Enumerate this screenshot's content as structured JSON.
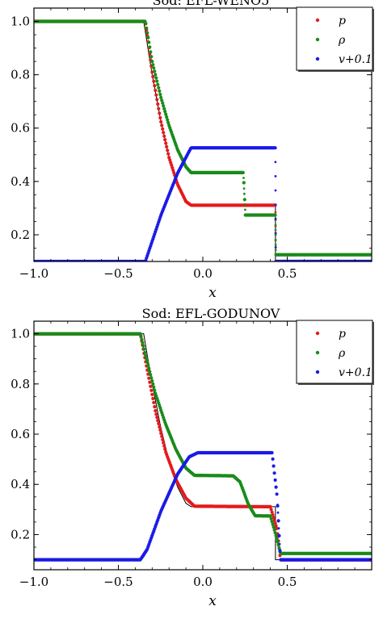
{
  "chart_data": [
    {
      "type": "line",
      "title": "Sod: EFL-WENO5",
      "xlabel": "x",
      "ylabel": "",
      "xlim": [
        -1.0,
        1.0
      ],
      "ylim": [
        0.1,
        1.05
      ],
      "xticks": [
        -1.0,
        -0.5,
        0.0,
        0.5
      ],
      "xtick_labels": [
        "−1.0",
        "−0.5",
        "0.0",
        "0.5"
      ],
      "yticks": [
        0.2,
        0.4,
        0.6,
        0.8,
        1.0
      ],
      "ytick_labels": [
        "0.2",
        "0.4",
        "0.6",
        "0.8",
        "1.0"
      ],
      "grid": false,
      "legend_position": "top-right",
      "series": [
        {
          "name": "p",
          "color": "#e41a1c",
          "marker": "dots",
          "x": [
            -1.0,
            -0.34,
            -0.3,
            -0.25,
            -0.2,
            -0.15,
            -0.1,
            -0.07,
            0.43,
            0.432,
            1.0
          ],
          "y": [
            1.0,
            1.0,
            0.81,
            0.63,
            0.49,
            0.39,
            0.325,
            0.311,
            0.311,
            0.1,
            0.1
          ]
        },
        {
          "name": "ρ",
          "color": "#1a8a1a",
          "marker": "dots",
          "x": [
            -1.0,
            -0.34,
            -0.3,
            -0.25,
            -0.2,
            -0.15,
            -0.1,
            -0.07,
            0.24,
            0.252,
            0.43,
            0.432,
            1.0
          ],
          "y": [
            1.0,
            1.0,
            0.85,
            0.72,
            0.61,
            0.52,
            0.455,
            0.433,
            0.433,
            0.274,
            0.274,
            0.125,
            0.125
          ]
        },
        {
          "name": "v+0.1",
          "color": "#1a1ae6",
          "marker": "dots",
          "x": [
            -1.0,
            -0.34,
            -0.25,
            -0.15,
            -0.07,
            0.43,
            0.432,
            1.0
          ],
          "y": [
            0.1,
            0.1,
            0.27,
            0.43,
            0.526,
            0.526,
            0.1,
            0.1
          ]
        }
      ],
      "exact_solution": {
        "name": "",
        "color": "#000000",
        "x": [
          -1.0,
          -0.35,
          -0.3,
          -0.25,
          -0.2,
          -0.15,
          -0.1,
          -0.07,
          0.25,
          0.25,
          0.43,
          0.43,
          1.0
        ],
        "y": [
          1.0,
          1.0,
          0.8,
          0.63,
          0.49,
          0.39,
          0.325,
          0.311,
          0.311,
          0.311,
          0.311,
          0.1,
          0.1
        ]
      }
    },
    {
      "type": "line",
      "title": "Sod: EFL-GODUNOV",
      "xlabel": "x",
      "ylabel": "",
      "xlim": [
        -1.0,
        1.0
      ],
      "ylim": [
        0.06,
        1.05
      ],
      "xticks": [
        -1.0,
        -0.5,
        0.0,
        0.5
      ],
      "xtick_labels": [
        "−1.0",
        "−0.5",
        "0.0",
        "0.5"
      ],
      "yticks": [
        0.2,
        0.4,
        0.6,
        0.8,
        1.0
      ],
      "ytick_labels": [
        "0.2",
        "0.4",
        "0.6",
        "0.8",
        "1.0"
      ],
      "grid": false,
      "legend_position": "top-right",
      "series": [
        {
          "name": "p",
          "color": "#e41a1c",
          "marker": "dots",
          "x": [
            -1.0,
            -0.37,
            -0.33,
            -0.28,
            -0.22,
            -0.16,
            -0.1,
            -0.05,
            0.4,
            0.44,
            0.46,
            1.0
          ],
          "y": [
            1.0,
            1.0,
            0.86,
            0.69,
            0.53,
            0.42,
            0.345,
            0.313,
            0.311,
            0.22,
            0.1,
            0.1
          ]
        },
        {
          "name": "ρ",
          "color": "#1a8a1a",
          "marker": "dots",
          "x": [
            -1.0,
            -0.37,
            -0.33,
            -0.28,
            -0.22,
            -0.16,
            -0.1,
            -0.05,
            0.18,
            0.22,
            0.27,
            0.31,
            0.4,
            0.44,
            0.46,
            1.0
          ],
          "y": [
            1.0,
            1.0,
            0.89,
            0.76,
            0.64,
            0.54,
            0.465,
            0.436,
            0.434,
            0.41,
            0.32,
            0.275,
            0.274,
            0.18,
            0.125,
            0.125
          ]
        },
        {
          "name": "v+0.1",
          "color": "#1a1ae6",
          "marker": "dots",
          "x": [
            -1.0,
            -0.37,
            -0.33,
            -0.25,
            -0.15,
            -0.08,
            -0.03,
            0.41,
            0.44,
            0.46,
            1.0
          ],
          "y": [
            0.1,
            0.1,
            0.14,
            0.29,
            0.44,
            0.51,
            0.526,
            0.526,
            0.35,
            0.1,
            0.1
          ]
        }
      ],
      "exact_solution": {
        "name": "",
        "color": "#000000",
        "x": [
          -1.0,
          -0.35,
          -0.3,
          -0.25,
          -0.2,
          -0.15,
          -0.1,
          -0.07,
          0.25,
          0.25,
          0.43,
          0.43,
          1.0
        ],
        "y": [
          1.0,
          1.0,
          0.8,
          0.63,
          0.49,
          0.39,
          0.325,
          0.311,
          0.311,
          0.311,
          0.311,
          0.1,
          0.1
        ]
      }
    }
  ]
}
